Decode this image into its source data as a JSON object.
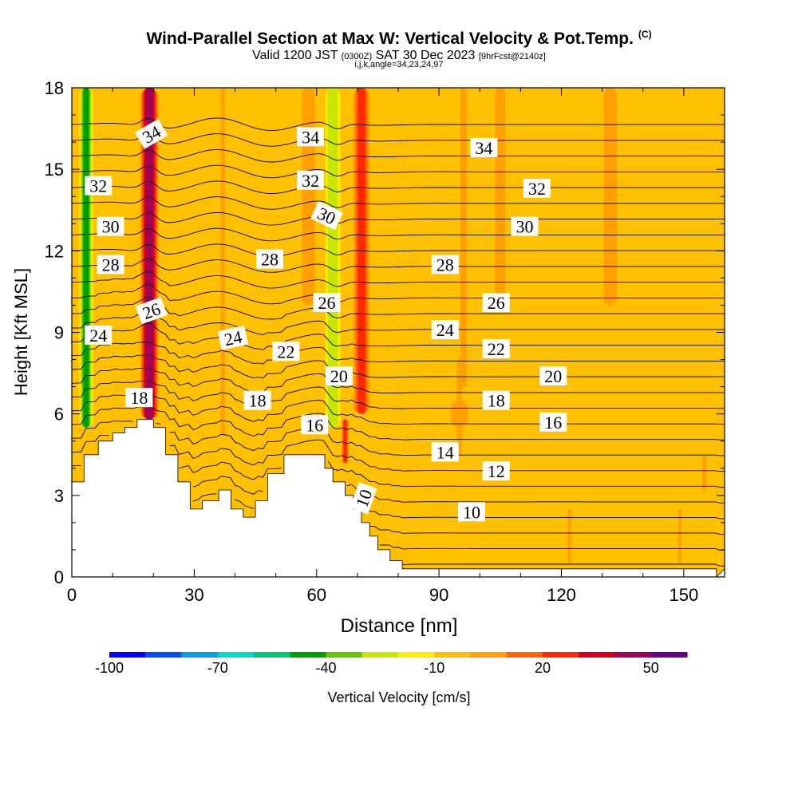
{
  "header": {
    "title": "Wind-Parallel Section at Max W: Vertical Velocity & Pot.Temp.",
    "copyright": "(C)",
    "valid_prefix": "Valid 1200 JST",
    "valid_utc": "(0300Z)",
    "valid_date": "SAT 30 Dec 2023",
    "forecast": "[9hrFcst@2140z]",
    "indices": "i,j,k,angle=34,23,24,97"
  },
  "chart_data": {
    "type": "heatmap",
    "title": "Wind-Parallel Section at Max W: Vertical Velocity & Pot.Temp.",
    "xlabel": "Distance [nm]",
    "ylabel": "Height [Kft MSL]",
    "xlim": [
      0,
      160
    ],
    "ylim": [
      0,
      18
    ],
    "x_ticks": [
      0,
      30,
      60,
      90,
      120,
      150
    ],
    "y_ticks": [
      0,
      3,
      6,
      9,
      12,
      15,
      18
    ],
    "colorbar": {
      "label": "Vertical Velocity [cm/s]",
      "tick_labels": [
        "-100",
        "-70",
        "-40",
        "-10",
        "20",
        "50"
      ],
      "tick_values": [
        -100,
        -70,
        -40,
        -10,
        20,
        50
      ],
      "range": [
        -100,
        60
      ],
      "step": 10,
      "colors": [
        "#0000ff",
        "#0050f0",
        "#00a0e8",
        "#00dcc8",
        "#00c878",
        "#00a000",
        "#64c800",
        "#c8e600",
        "#ffee00",
        "#ffc000",
        "#ffa000",
        "#ff6400",
        "#ff2800",
        "#d2001e",
        "#a0005a",
        "#64008c"
      ]
    },
    "background_velocity_cm_s": -5,
    "velocity_features": [
      {
        "x": 3.5,
        "y_bottom": 5.5,
        "y_top": 18,
        "width_nm": 3.5,
        "value": -45
      },
      {
        "x": 19,
        "y_bottom": 5.8,
        "y_top": 18,
        "width_nm": 4.5,
        "value": 45
      },
      {
        "x": 37,
        "y_bottom": 5.2,
        "y_top": 18,
        "width_nm": 2.5,
        "value": 8
      },
      {
        "x": 64,
        "y_bottom": 5.5,
        "y_top": 18,
        "width_nm": 4,
        "value": -30
      },
      {
        "x": 71,
        "y_bottom": 6,
        "y_top": 18,
        "width_nm": 4.5,
        "value": 22
      },
      {
        "x": 67,
        "y_bottom": 4.2,
        "y_top": 5.8,
        "width_nm": 2,
        "value": 22
      },
      {
        "x": 58,
        "y_bottom": 10,
        "y_top": 18,
        "width_nm": 8,
        "value": 5
      },
      {
        "x": 96,
        "y_bottom": 7,
        "y_top": 18,
        "width_nm": 4,
        "value": 6
      },
      {
        "x": 105,
        "y_bottom": 10,
        "y_top": 18,
        "width_nm": 6,
        "value": 4
      },
      {
        "x": 132,
        "y_bottom": 10,
        "y_top": 18,
        "width_nm": 8,
        "value": 5
      },
      {
        "x": 95,
        "y_bottom": 4.5,
        "y_top": 8,
        "width_nm": 3,
        "value": 4
      },
      {
        "x": 122,
        "y_bottom": 0.5,
        "y_top": 2.5,
        "width_nm": 2,
        "value": 5
      },
      {
        "x": 149,
        "y_bottom": 0.5,
        "y_top": 2.5,
        "width_nm": 2,
        "value": 5
      },
      {
        "x": 155,
        "y_bottom": 3.2,
        "y_top": 4.5,
        "width_nm": 2.5,
        "value": 5
      },
      {
        "x": 95,
        "y_bottom": 5.5,
        "y_top": 6.5,
        "width_nm": 10,
        "value": 3
      }
    ],
    "terrain_height_kft": [
      [
        0,
        3.5
      ],
      [
        3,
        3.5
      ],
      [
        3,
        4.5
      ],
      [
        6.5,
        4.5
      ],
      [
        6.5,
        5.0
      ],
      [
        10,
        5.0
      ],
      [
        10,
        5.3
      ],
      [
        13,
        5.3
      ],
      [
        13,
        5.5
      ],
      [
        16,
        5.5
      ],
      [
        16,
        5.8
      ],
      [
        20,
        5.8
      ],
      [
        20,
        5.5
      ],
      [
        23,
        5.5
      ],
      [
        23,
        4.5
      ],
      [
        26,
        4.5
      ],
      [
        26,
        3.5
      ],
      [
        29,
        3.5
      ],
      [
        29,
        2.5
      ],
      [
        32,
        2.5
      ],
      [
        32,
        2.8
      ],
      [
        36,
        2.8
      ],
      [
        36,
        3.2
      ],
      [
        39,
        3.2
      ],
      [
        39,
        2.5
      ],
      [
        42,
        2.5
      ],
      [
        42,
        2.2
      ],
      [
        45,
        2.2
      ],
      [
        45,
        2.8
      ],
      [
        48,
        2.8
      ],
      [
        48,
        3.8
      ],
      [
        52,
        3.8
      ],
      [
        52,
        4.5
      ],
      [
        62,
        4.5
      ],
      [
        62,
        4.0
      ],
      [
        64,
        4.0
      ],
      [
        64,
        3.5
      ],
      [
        67,
        3.5
      ],
      [
        67,
        3.0
      ],
      [
        69,
        3.0
      ],
      [
        69,
        2.5
      ],
      [
        71,
        2.5
      ],
      [
        71,
        2.0
      ],
      [
        73,
        2.0
      ],
      [
        73,
        1.5
      ],
      [
        75,
        1.5
      ],
      [
        75,
        1.0
      ],
      [
        78,
        1.0
      ],
      [
        78,
        0.6
      ],
      [
        81,
        0.6
      ],
      [
        81,
        0.3
      ],
      [
        158,
        0.3
      ],
      [
        158,
        0
      ]
    ],
    "theta_contour_interval": 1,
    "theta_labels": [
      {
        "text": "34",
        "x": 19.5,
        "y": 16.3,
        "angle": -30
      },
      {
        "text": "34",
        "x": 58.5,
        "y": 16.2,
        "angle": 0
      },
      {
        "text": "34",
        "x": 101,
        "y": 15.8,
        "angle": 0
      },
      {
        "text": "32",
        "x": 6.5,
        "y": 14.4,
        "angle": 0
      },
      {
        "text": "32",
        "x": 58.5,
        "y": 14.6,
        "angle": 0
      },
      {
        "text": "32",
        "x": 114,
        "y": 14.3,
        "angle": 0
      },
      {
        "text": "30",
        "x": 9.5,
        "y": 12.9,
        "angle": 0
      },
      {
        "text": "30",
        "x": 62.5,
        "y": 13.3,
        "angle": 25
      },
      {
        "text": "30",
        "x": 111,
        "y": 12.9,
        "angle": 0
      },
      {
        "text": "28",
        "x": 9.5,
        "y": 11.5,
        "angle": 0
      },
      {
        "text": "28",
        "x": 48.5,
        "y": 11.7,
        "angle": 0
      },
      {
        "text": "28",
        "x": 91.5,
        "y": 11.5,
        "angle": 0
      },
      {
        "text": "26",
        "x": 19.5,
        "y": 9.8,
        "angle": -20
      },
      {
        "text": "26",
        "x": 62.5,
        "y": 10.1,
        "angle": 0
      },
      {
        "text": "26",
        "x": 104,
        "y": 10.1,
        "angle": 0
      },
      {
        "text": "24",
        "x": 6.5,
        "y": 8.9,
        "angle": 0
      },
      {
        "text": "24",
        "x": 39.5,
        "y": 8.8,
        "angle": -12
      },
      {
        "text": "24",
        "x": 91.5,
        "y": 9.1,
        "angle": 0
      },
      {
        "text": "22",
        "x": 52.5,
        "y": 8.3,
        "angle": 0
      },
      {
        "text": "22",
        "x": 104,
        "y": 8.4,
        "angle": 0
      },
      {
        "text": "20",
        "x": 65.5,
        "y": 7.4,
        "angle": 0
      },
      {
        "text": "20",
        "x": 118,
        "y": 7.4,
        "angle": 0
      },
      {
        "text": "18",
        "x": 16.5,
        "y": 6.6,
        "angle": 0
      },
      {
        "text": "18",
        "x": 45.5,
        "y": 6.5,
        "angle": 0
      },
      {
        "text": "18",
        "x": 104,
        "y": 6.5,
        "angle": 0
      },
      {
        "text": "16",
        "x": 59.5,
        "y": 5.6,
        "angle": 0
      },
      {
        "text": "16",
        "x": 118,
        "y": 5.7,
        "angle": 0
      },
      {
        "text": "14",
        "x": 91.5,
        "y": 4.6,
        "angle": 0
      },
      {
        "text": "12",
        "x": 104,
        "y": 3.9,
        "angle": 0
      },
      {
        "text": "10",
        "x": 71.5,
        "y": 2.9,
        "angle": -70
      },
      {
        "text": "10",
        "x": 98,
        "y": 2.4,
        "angle": 0
      }
    ]
  }
}
